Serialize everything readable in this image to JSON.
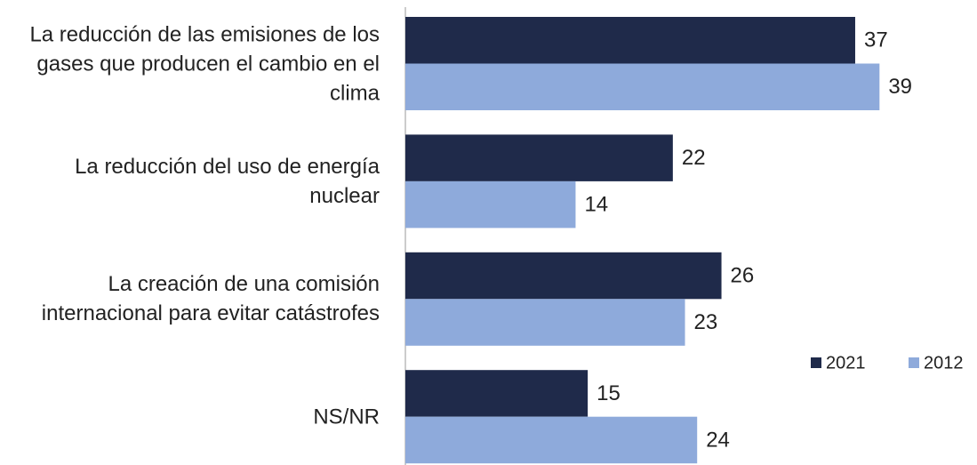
{
  "chart_data": {
    "type": "hbar",
    "categories": [
      "La reducción de las emisiones de los gases que producen el cambio en el clima",
      "La reducción del uso de energía nuclear",
      "La creación de una comisión internacional para evitar catástrofes",
      "NS/NR"
    ],
    "series": [
      {
        "name": "2021",
        "color": "#1f2a4a",
        "values": [
          37,
          22,
          26,
          15
        ]
      },
      {
        "name": "2012",
        "color": "#8eaadb",
        "values": [
          39,
          14,
          23,
          24
        ]
      }
    ],
    "xlim": [
      0,
      40
    ],
    "legend": "lower-right"
  }
}
